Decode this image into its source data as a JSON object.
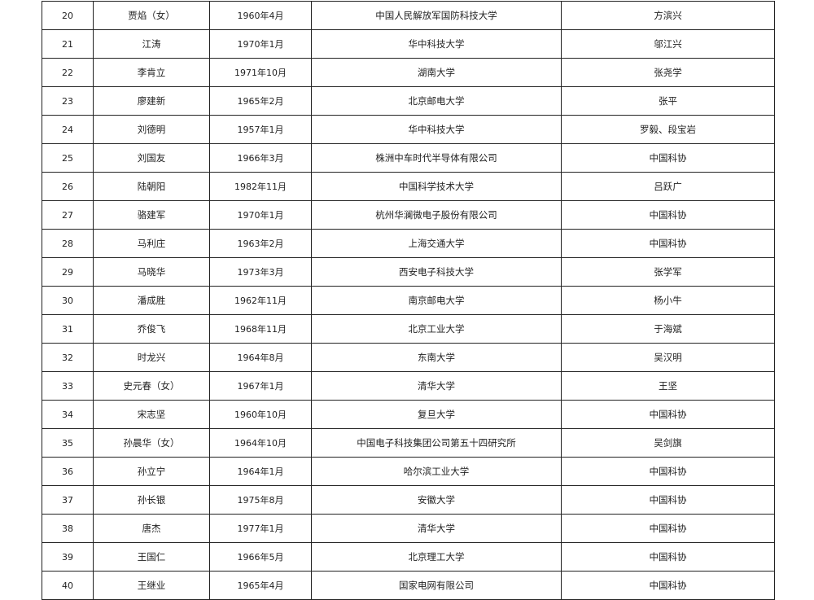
{
  "rows": [
    {
      "no": "20",
      "name": "贾焰（女）",
      "birth": "1960年4月",
      "org": "中国人民解放军国防科技大学",
      "nominator": "方滨兴"
    },
    {
      "no": "21",
      "name": "江涛",
      "birth": "1970年1月",
      "org": "华中科技大学",
      "nominator": "邬江兴"
    },
    {
      "no": "22",
      "name": "李肯立",
      "birth": "1971年10月",
      "org": "湖南大学",
      "nominator": "张尧学"
    },
    {
      "no": "23",
      "name": "廖建新",
      "birth": "1965年2月",
      "org": "北京邮电大学",
      "nominator": "张平"
    },
    {
      "no": "24",
      "name": "刘德明",
      "birth": "1957年1月",
      "org": "华中科技大学",
      "nominator": "罗毅、段宝岩"
    },
    {
      "no": "25",
      "name": "刘国友",
      "birth": "1966年3月",
      "org": "株洲中车时代半导体有限公司",
      "nominator": "中国科协"
    },
    {
      "no": "26",
      "name": "陆朝阳",
      "birth": "1982年11月",
      "org": "中国科学技术大学",
      "nominator": "吕跃广"
    },
    {
      "no": "27",
      "name": "骆建军",
      "birth": "1970年1月",
      "org": "杭州华澜微电子股份有限公司",
      "nominator": "中国科协"
    },
    {
      "no": "28",
      "name": "马利庄",
      "birth": "1963年2月",
      "org": "上海交通大学",
      "nominator": "中国科协"
    },
    {
      "no": "29",
      "name": "马晓华",
      "birth": "1973年3月",
      "org": "西安电子科技大学",
      "nominator": "张学军"
    },
    {
      "no": "30",
      "name": "潘成胜",
      "birth": "1962年11月",
      "org": "南京邮电大学",
      "nominator": "杨小牛"
    },
    {
      "no": "31",
      "name": "乔俊飞",
      "birth": "1968年11月",
      "org": "北京工业大学",
      "nominator": "于海斌"
    },
    {
      "no": "32",
      "name": "时龙兴",
      "birth": "1964年8月",
      "org": "东南大学",
      "nominator": "吴汉明"
    },
    {
      "no": "33",
      "name": "史元春（女）",
      "birth": "1967年1月",
      "org": "清华大学",
      "nominator": "王坚"
    },
    {
      "no": "34",
      "name": "宋志坚",
      "birth": "1960年10月",
      "org": "复旦大学",
      "nominator": "中国科协"
    },
    {
      "no": "35",
      "name": "孙晨华（女）",
      "birth": "1964年10月",
      "org": "中国电子科技集团公司第五十四研究所",
      "nominator": "吴剑旗"
    },
    {
      "no": "36",
      "name": "孙立宁",
      "birth": "1964年1月",
      "org": "哈尔滨工业大学",
      "nominator": "中国科协"
    },
    {
      "no": "37",
      "name": "孙长银",
      "birth": "1975年8月",
      "org": "安徽大学",
      "nominator": "中国科协"
    },
    {
      "no": "38",
      "name": "唐杰",
      "birth": "1977年1月",
      "org": "清华大学",
      "nominator": "中国科协"
    },
    {
      "no": "39",
      "name": "王国仁",
      "birth": "1966年5月",
      "org": "北京理工大学",
      "nominator": "中国科协"
    },
    {
      "no": "40",
      "name": "王继业",
      "birth": "1965年4月",
      "org": "国家电网有限公司",
      "nominator": "中国科协"
    }
  ]
}
